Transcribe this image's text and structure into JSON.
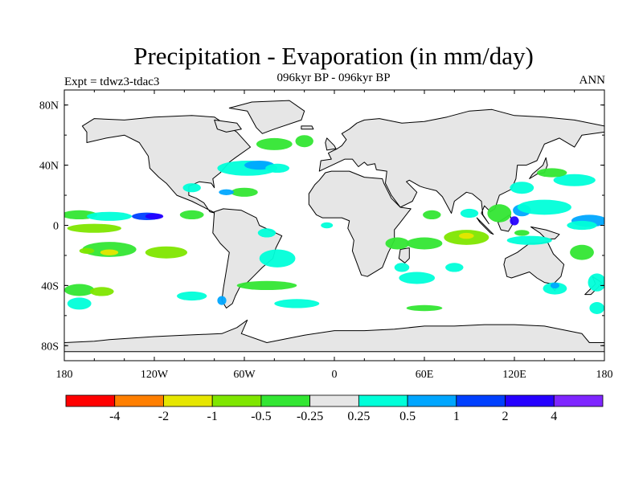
{
  "title": "Precipitation - Evaporation (in mm/day)",
  "subtitle": "096kyr BP - 096kyr BP",
  "experiment_label": "Expt = tdwz3-tdac3",
  "season_label": "ANN",
  "colors": {
    "land": "#e6e6e6",
    "coastline": "#000000",
    "colorbar": [
      "#ff0000",
      "#ff7f00",
      "#e6e600",
      "#7fe600",
      "#33e633",
      "#e6e6e6",
      "#00ffd9",
      "#00a6ff",
      "#0040ff",
      "#2600ff",
      "#7f26ff"
    ]
  },
  "chart_data": {
    "type": "map",
    "projection": "equirectangular",
    "lon_range": [
      -180,
      180
    ],
    "lat_range": [
      -90,
      90
    ],
    "x_ticks": [
      {
        "value": -180,
        "label": "180"
      },
      {
        "value": -120,
        "label": "120W"
      },
      {
        "value": -60,
        "label": "60W"
      },
      {
        "value": 0,
        "label": "0"
      },
      {
        "value": 60,
        "label": "60E"
      },
      {
        "value": 120,
        "label": "120E"
      },
      {
        "value": 180,
        "label": "180"
      }
    ],
    "y_ticks": [
      {
        "value": 80,
        "label": "80N"
      },
      {
        "value": 40,
        "label": "40N"
      },
      {
        "value": 0,
        "label": "0"
      },
      {
        "value": -40,
        "label": "40S"
      },
      {
        "value": -80,
        "label": "80S"
      }
    ],
    "colorbar_labels": [
      "-4",
      "-2",
      "-1",
      "-0.5",
      "-0.25",
      "0.25",
      "0.5",
      "1",
      "2",
      "4"
    ],
    "anomaly_regions": [
      {
        "lon": -170,
        "lat": 7,
        "rlon": 12,
        "rlat": 3,
        "level": 4
      },
      {
        "lon": -150,
        "lat": 6,
        "rlon": 15,
        "rlat": 3,
        "level": 6
      },
      {
        "lon": -125,
        "lat": 6,
        "rlon": 10,
        "rlat": 2.5,
        "level": 8
      },
      {
        "lon": -120,
        "lat": 6,
        "rlon": 6,
        "rlat": 2,
        "level": 9
      },
      {
        "lon": -95,
        "lat": 7,
        "rlon": 8,
        "rlat": 3,
        "level": 4
      },
      {
        "lon": -160,
        "lat": -2,
        "rlon": 18,
        "rlat": 3,
        "level": 3
      },
      {
        "lon": -150,
        "lat": -16,
        "rlon": 18,
        "rlat": 5,
        "level": 4
      },
      {
        "lon": -165,
        "lat": -17,
        "rlon": 5,
        "rlat": 2,
        "level": 3
      },
      {
        "lon": -150,
        "lat": -18,
        "rlon": 6,
        "rlat": 2,
        "level": 2
      },
      {
        "lon": -112,
        "lat": -18,
        "rlon": 14,
        "rlat": 4,
        "level": 3
      },
      {
        "lon": -170,
        "lat": -43,
        "rlon": 10,
        "rlat": 4,
        "level": 4
      },
      {
        "lon": -155,
        "lat": -44,
        "rlon": 8,
        "rlat": 3,
        "level": 3
      },
      {
        "lon": -170,
        "lat": -52,
        "rlon": 8,
        "rlat": 4,
        "level": 6
      },
      {
        "lon": -95,
        "lat": -47,
        "rlon": 10,
        "rlat": 3,
        "level": 6
      },
      {
        "lon": -75,
        "lat": -50,
        "rlon": 3,
        "rlat": 3,
        "level": 7
      },
      {
        "lon": -58,
        "lat": 38,
        "rlon": 20,
        "rlat": 5,
        "level": 6
      },
      {
        "lon": -50,
        "lat": 40,
        "rlon": 10,
        "rlat": 3,
        "level": 7
      },
      {
        "lon": -38,
        "lat": 38,
        "rlon": 8,
        "rlat": 3,
        "level": 6
      },
      {
        "lon": -40,
        "lat": 54,
        "rlon": 12,
        "rlat": 4,
        "level": 4
      },
      {
        "lon": -20,
        "lat": 56,
        "rlon": 6,
        "rlat": 4,
        "level": 4
      },
      {
        "lon": -60,
        "lat": 22,
        "rlon": 9,
        "rlat": 3,
        "level": 4
      },
      {
        "lon": -72,
        "lat": 22,
        "rlon": 5,
        "rlat": 2,
        "level": 7
      },
      {
        "lon": -95,
        "lat": 25,
        "rlon": 6,
        "rlat": 3,
        "level": 6
      },
      {
        "lon": -45,
        "lat": -5,
        "rlon": 6,
        "rlat": 3,
        "level": 6
      },
      {
        "lon": -38,
        "lat": -22,
        "rlon": 12,
        "rlat": 6,
        "level": 6
      },
      {
        "lon": -45,
        "lat": -40,
        "rlon": 20,
        "rlat": 3,
        "level": 4
      },
      {
        "lon": -25,
        "lat": -52,
        "rlon": 15,
        "rlat": 3,
        "level": 6
      },
      {
        "lon": -5,
        "lat": 0,
        "rlon": 4,
        "rlat": 2,
        "level": 6
      },
      {
        "lon": 42,
        "lat": -12,
        "rlon": 8,
        "rlat": 4,
        "level": 4
      },
      {
        "lon": 55,
        "lat": -35,
        "rlon": 12,
        "rlat": 4,
        "level": 6
      },
      {
        "lon": 45,
        "lat": -28,
        "rlon": 5,
        "rlat": 3,
        "level": 6
      },
      {
        "lon": 60,
        "lat": -12,
        "rlon": 12,
        "rlat": 4,
        "level": 4
      },
      {
        "lon": 88,
        "lat": -8,
        "rlon": 15,
        "rlat": 5,
        "level": 3
      },
      {
        "lon": 88,
        "lat": -7,
        "rlon": 5,
        "rlat": 2,
        "level": 2
      },
      {
        "lon": 80,
        "lat": -28,
        "rlon": 6,
        "rlat": 3,
        "level": 6
      },
      {
        "lon": 60,
        "lat": -55,
        "rlon": 12,
        "rlat": 2,
        "level": 4
      },
      {
        "lon": 65,
        "lat": 7,
        "rlon": 6,
        "rlat": 3,
        "level": 4
      },
      {
        "lon": 90,
        "lat": 8,
        "rlon": 6,
        "rlat": 3,
        "level": 6
      },
      {
        "lon": 110,
        "lat": 8,
        "rlon": 8,
        "rlat": 6,
        "level": 4
      },
      {
        "lon": 125,
        "lat": 10,
        "rlon": 6,
        "rlat": 4,
        "level": 7
      },
      {
        "lon": 120,
        "lat": 3,
        "rlon": 3,
        "rlat": 3,
        "level": 9
      },
      {
        "lon": 140,
        "lat": 12,
        "rlon": 18,
        "rlat": 5,
        "level": 6
      },
      {
        "lon": 170,
        "lat": 3,
        "rlon": 12,
        "rlat": 4,
        "level": 7
      },
      {
        "lon": 165,
        "lat": 0,
        "rlon": 10,
        "rlat": 3,
        "level": 6
      },
      {
        "lon": 160,
        "lat": 30,
        "rlon": 14,
        "rlat": 4,
        "level": 6
      },
      {
        "lon": 145,
        "lat": 35,
        "rlon": 10,
        "rlat": 3,
        "level": 4
      },
      {
        "lon": 130,
        "lat": -10,
        "rlon": 15,
        "rlat": 3,
        "level": 6
      },
      {
        "lon": 125,
        "lat": -5,
        "rlon": 5,
        "rlat": 2,
        "level": 4
      },
      {
        "lon": 125,
        "lat": 25,
        "rlon": 8,
        "rlat": 4,
        "level": 6
      },
      {
        "lon": 147,
        "lat": -42,
        "rlon": 8,
        "rlat": 4,
        "level": 6
      },
      {
        "lon": 147,
        "lat": -40,
        "rlon": 3,
        "rlat": 2,
        "level": 7
      },
      {
        "lon": 175,
        "lat": -38,
        "rlon": 6,
        "rlat": 6,
        "level": 6
      },
      {
        "lon": 165,
        "lat": -18,
        "rlon": 8,
        "rlat": 5,
        "level": 4
      },
      {
        "lon": 175,
        "lat": -55,
        "rlon": 5,
        "rlat": 4,
        "level": 6
      }
    ]
  }
}
